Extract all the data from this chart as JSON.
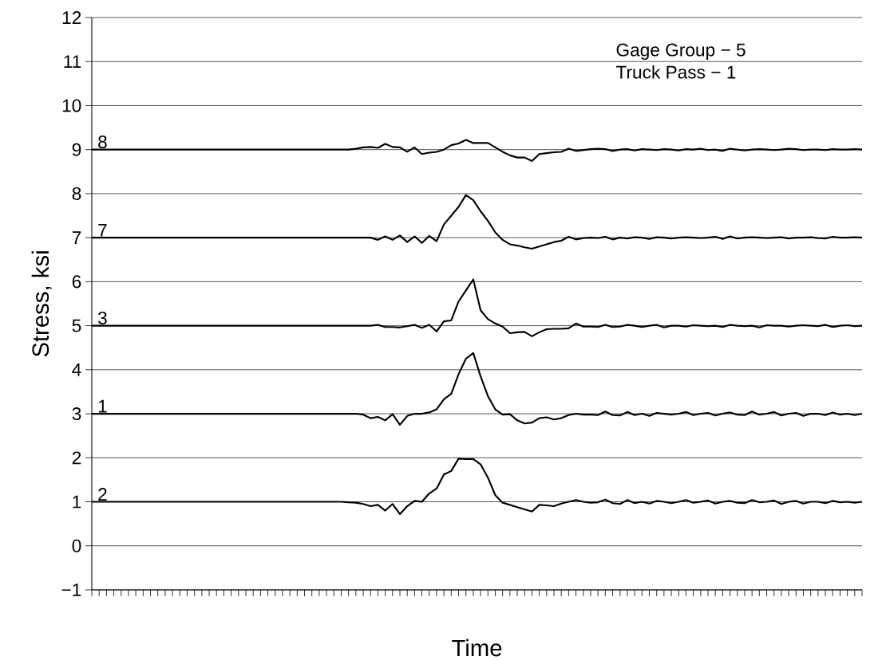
{
  "chart_data": {
    "type": "line",
    "xlabel": "Time",
    "ylabel": "Stress,  ksi",
    "annotations": [
      "Gage Group − 5",
      "Truck Pass − 1"
    ],
    "categories": [
      null,
      null,
      null,
      null,
      null,
      null,
      null,
      null,
      null,
      null,
      null,
      null,
      null,
      null,
      null,
      null,
      null,
      null,
      null,
      null,
      null,
      null,
      null,
      null,
      null,
      null,
      null,
      null,
      null,
      null,
      null,
      null,
      null,
      null,
      null,
      null,
      null,
      null,
      null,
      null,
      null,
      null,
      null,
      null,
      null,
      null,
      null,
      null,
      null,
      null,
      null,
      null,
      null,
      null,
      null,
      null,
      null,
      null,
      null,
      null,
      null,
      null,
      null,
      null,
      null,
      null,
      null,
      null,
      null,
      null,
      null,
      null,
      null,
      null,
      null,
      null,
      null,
      null,
      null,
      null,
      null,
      null,
      null,
      null,
      null,
      null,
      null,
      null,
      null,
      null,
      null,
      null,
      null,
      null,
      null,
      null,
      null,
      null,
      null,
      null,
      null,
      null,
      null,
      null,
      null,
      null
    ],
    "ylim": [
      -1,
      12
    ],
    "yticks": [
      {
        "value": -1,
        "label": "−1"
      },
      0,
      1,
      2,
      3,
      4,
      5,
      6,
      7,
      8,
      9,
      10,
      11,
      12
    ],
    "grid": "y",
    "tick_labels": "y",
    "series": [
      {
        "name": "8",
        "color": "#000000",
        "values": [
          9,
          9,
          9,
          9,
          9,
          9,
          9,
          9,
          9,
          9,
          9,
          9,
          9,
          9,
          9,
          9,
          9,
          9,
          9,
          9,
          9,
          9,
          9,
          9,
          9,
          9,
          9,
          9,
          9,
          9,
          9,
          9,
          9,
          9,
          9,
          9.0,
          9.02,
          9.05,
          9.06,
          9.04,
          9.13,
          9.06,
          9.05,
          8.95,
          9.05,
          8.9,
          8.93,
          8.95,
          9.0,
          9.1,
          9.14,
          9.22,
          9.15,
          9.15,
          9.15,
          9.05,
          8.95,
          8.87,
          8.82,
          8.82,
          8.74,
          8.9,
          8.92,
          8.94,
          8.95,
          9.02,
          8.97,
          8.99,
          9.01,
          9.02,
          9.01,
          8.97,
          9.0,
          9.01,
          8.98,
          9.01,
          9.0,
          8.99,
          9.01,
          9.0,
          8.98,
          9.01,
          9.0,
          9.02,
          8.99,
          9.0,
          8.97,
          9.02,
          9.0,
          8.98,
          9.0,
          9.01,
          9.0,
          8.99,
          9.0,
          9.02,
          9.01,
          8.99,
          9.0,
          9.0,
          8.99,
          9.01,
          9.0,
          9.0,
          9.01,
          9.0
        ]
      },
      {
        "name": "7",
        "color": "#000000",
        "values": [
          7,
          7,
          7,
          7,
          7,
          7,
          7,
          7,
          7,
          7,
          7,
          7,
          7,
          7,
          7,
          7,
          7,
          7,
          7,
          7,
          7,
          7,
          7,
          7,
          7,
          7,
          7,
          7,
          7,
          7,
          7,
          7,
          7,
          7,
          7,
          7,
          7,
          7,
          7,
          6.95,
          7.03,
          6.95,
          7.05,
          6.9,
          7.03,
          6.88,
          7.04,
          6.92,
          7.3,
          7.5,
          7.7,
          7.97,
          7.85,
          7.6,
          7.38,
          7.12,
          6.95,
          6.85,
          6.82,
          6.78,
          6.75,
          6.8,
          6.85,
          6.9,
          6.93,
          7.02,
          6.96,
          6.99,
          7.0,
          6.99,
          7.02,
          6.96,
          7.0,
          6.98,
          7.01,
          7.0,
          6.97,
          7.01,
          7.0,
          6.98,
          7.0,
          7.01,
          7.0,
          6.99,
          7.0,
          7.02,
          6.97,
          7.03,
          6.98,
          7.0,
          7.01,
          7.0,
          6.99,
          7.0,
          7.01,
          6.98,
          7.0,
          7.0,
          7.01,
          6.99,
          6.98,
          7.02,
          7.0,
          7.0,
          7.01,
          7.0
        ]
      },
      {
        "name": "3",
        "color": "#000000",
        "values": [
          5,
          5,
          5,
          5,
          5,
          5,
          5,
          5,
          5,
          5,
          5,
          5,
          5,
          5,
          5,
          5,
          5,
          5,
          5,
          5,
          5,
          5,
          5,
          5,
          5,
          5,
          5,
          5,
          5,
          5,
          5,
          5,
          5,
          5,
          5,
          5,
          5,
          5,
          5,
          5.02,
          4.97,
          4.97,
          4.96,
          4.99,
          5.02,
          4.95,
          5.02,
          4.87,
          5.1,
          5.12,
          5.55,
          5.8,
          6.05,
          5.35,
          5.15,
          5.05,
          4.98,
          4.83,
          4.85,
          4.86,
          4.76,
          4.85,
          4.92,
          4.93,
          4.93,
          4.94,
          5.05,
          4.98,
          4.98,
          4.97,
          5.02,
          4.97,
          4.98,
          5.02,
          5.0,
          4.97,
          5.0,
          5.02,
          4.96,
          5.0,
          5.0,
          4.98,
          5.01,
          5.0,
          4.99,
          5.0,
          4.97,
          5.02,
          5.0,
          4.99,
          5.0,
          4.96,
          5.01,
          5.0,
          5.0,
          4.98,
          5.0,
          5.01,
          5.0,
          4.99,
          5.02,
          4.97,
          5.0,
          5.01,
          4.99,
          5.0
        ]
      },
      {
        "name": "1",
        "color": "#000000",
        "values": [
          3,
          3,
          3,
          3,
          3,
          3,
          3,
          3,
          3,
          3,
          3,
          3,
          3,
          3,
          3,
          3,
          3,
          3,
          3,
          3,
          3,
          3,
          3,
          3,
          3,
          3,
          3,
          3,
          3,
          3,
          3,
          3,
          3,
          3,
          3,
          3,
          3,
          2.98,
          2.9,
          2.93,
          2.85,
          2.99,
          2.75,
          2.95,
          3.0,
          3.0,
          3.03,
          3.1,
          3.33,
          3.45,
          3.9,
          4.25,
          4.38,
          3.85,
          3.4,
          3.1,
          2.98,
          2.99,
          2.85,
          2.78,
          2.8,
          2.9,
          2.92,
          2.87,
          2.9,
          2.97,
          3.0,
          2.98,
          2.98,
          2.97,
          3.05,
          2.97,
          2.96,
          3.04,
          2.97,
          3.0,
          2.95,
          3.02,
          3.0,
          2.98,
          3.0,
          3.04,
          2.97,
          3.0,
          3.02,
          2.96,
          3.0,
          3.03,
          2.98,
          2.97,
          3.05,
          2.98,
          3.0,
          3.04,
          2.96,
          3.0,
          3.02,
          2.95,
          3.0,
          3.0,
          2.97,
          3.03,
          2.98,
          3.0,
          2.97,
          3.0
        ]
      },
      {
        "name": "2",
        "color": "#000000",
        "values": [
          1,
          1,
          1,
          1,
          1,
          1,
          1,
          1,
          1,
          1,
          1,
          1,
          1,
          1,
          1,
          1,
          1,
          1,
          1,
          1,
          1,
          1,
          1,
          1,
          1,
          1,
          1,
          1,
          1,
          1,
          1,
          1,
          1,
          1,
          1,
          0.99,
          0.98,
          0.95,
          0.9,
          0.93,
          0.8,
          0.95,
          0.72,
          0.9,
          1.02,
          1.0,
          1.19,
          1.3,
          1.62,
          1.7,
          1.98,
          1.97,
          1.97,
          1.85,
          1.55,
          1.15,
          0.98,
          0.93,
          0.88,
          0.83,
          0.78,
          0.93,
          0.92,
          0.9,
          0.96,
          1.0,
          1.04,
          1.0,
          0.98,
          0.99,
          1.05,
          0.97,
          0.95,
          1.04,
          0.97,
          1.0,
          0.96,
          1.02,
          1.0,
          0.97,
          1.0,
          1.04,
          0.98,
          1.0,
          1.03,
          0.96,
          1.0,
          1.02,
          0.98,
          0.97,
          1.04,
          0.99,
          1.0,
          1.03,
          0.95,
          1.0,
          1.02,
          0.96,
          1.0,
          1.0,
          0.97,
          1.02,
          0.99,
          1.0,
          0.98,
          1.0
        ]
      }
    ]
  }
}
